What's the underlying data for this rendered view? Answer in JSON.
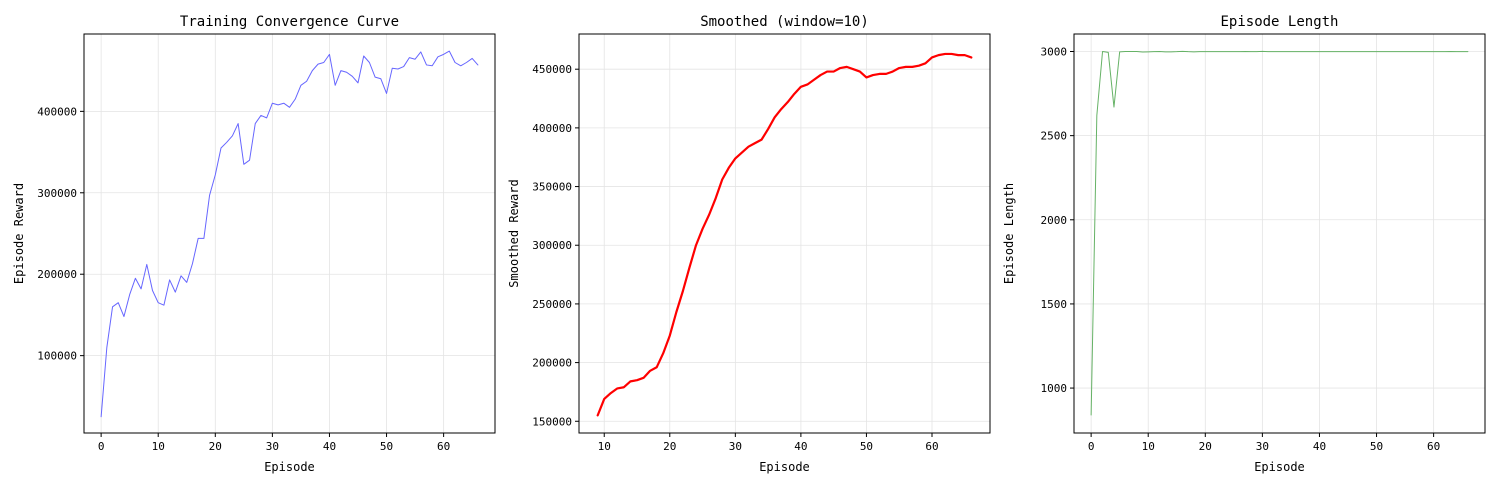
{
  "chart_data": [
    {
      "type": "line",
      "title": "Training Convergence Curve",
      "xlabel": "Episode",
      "ylabel": "Episode Reward",
      "xlim": [
        -3,
        69
      ],
      "ylim": [
        5000,
        495000
      ],
      "xticks": [
        0,
        10,
        20,
        30,
        40,
        50,
        60
      ],
      "yticks": [
        100000,
        200000,
        300000,
        400000
      ],
      "grid": true,
      "series": [
        {
          "color": "#6666ff",
          "line_width": 1,
          "x": [
            0,
            1,
            2,
            3,
            4,
            5,
            6,
            7,
            8,
            9,
            10,
            11,
            12,
            13,
            14,
            15,
            16,
            17,
            18,
            19,
            20,
            21,
            22,
            23,
            24,
            25,
            26,
            27,
            28,
            29,
            30,
            31,
            32,
            33,
            34,
            35,
            36,
            37,
            38,
            39,
            40,
            41,
            42,
            43,
            44,
            45,
            46,
            47,
            48,
            49,
            50,
            51,
            52,
            53,
            54,
            55,
            56,
            57,
            58,
            59,
            60,
            61,
            62,
            63,
            64,
            65,
            66
          ],
          "values": [
            25000,
            110000,
            160000,
            165000,
            148000,
            175000,
            195000,
            182000,
            212000,
            180000,
            165000,
            162000,
            193000,
            178000,
            198000,
            190000,
            213000,
            244000,
            244000,
            297000,
            322000,
            355000,
            362000,
            370000,
            385000,
            335000,
            340000,
            385000,
            395000,
            392000,
            410000,
            408000,
            410000,
            405000,
            415000,
            432000,
            437000,
            450000,
            458000,
            460000,
            470000,
            432000,
            450000,
            448000,
            443000,
            435000,
            468000,
            460000,
            442000,
            440000,
            422000,
            453000,
            452000,
            455000,
            466000,
            464000,
            473000,
            457000,
            456000,
            467000,
            470000,
            474000,
            460000,
            456000,
            460000,
            465000,
            457000
          ]
        }
      ]
    },
    {
      "type": "line",
      "title": "Smoothed (window=10)",
      "xlabel": "Episode",
      "ylabel": "Smoothed Reward",
      "xlim": [
        6.15,
        68.85
      ],
      "ylim": [
        140000,
        480000
      ],
      "xticks": [
        10,
        20,
        30,
        40,
        50,
        60
      ],
      "yticks": [
        150000,
        200000,
        250000,
        300000,
        350000,
        400000,
        450000
      ],
      "grid": true,
      "series": [
        {
          "color": "#ff0000",
          "line_width": 2.2,
          "x": [
            9,
            10,
            11,
            12,
            13,
            14,
            15,
            16,
            17,
            18,
            19,
            20,
            21,
            22,
            23,
            24,
            25,
            26,
            27,
            28,
            29,
            30,
            31,
            32,
            33,
            34,
            35,
            36,
            37,
            38,
            39,
            40,
            41,
            42,
            43,
            44,
            45,
            46,
            47,
            48,
            49,
            50,
            51,
            52,
            53,
            54,
            55,
            56,
            57,
            58,
            59,
            60,
            61,
            62,
            63,
            64,
            65,
            66
          ],
          "values": [
            155000,
            169000,
            174000,
            178000,
            179000,
            184000,
            185000,
            187000,
            193000,
            196000,
            208000,
            223000,
            243000,
            261000,
            281000,
            300000,
            314000,
            326000,
            340000,
            356000,
            366000,
            374000,
            379000,
            384000,
            387000,
            390000,
            399000,
            409000,
            416000,
            422000,
            429000,
            435000,
            437000,
            441000,
            445000,
            448000,
            448000,
            451000,
            452000,
            450000,
            448000,
            443000,
            445000,
            446000,
            446000,
            448000,
            451000,
            452000,
            452000,
            453000,
            455000,
            460000,
            462000,
            463000,
            463000,
            462000,
            462000,
            460000
          ]
        }
      ]
    },
    {
      "type": "line",
      "title": "Episode Length",
      "xlabel": "Episode",
      "ylabel": "Episode Length",
      "xlim": [
        -3,
        69
      ],
      "ylim": [
        733,
        3104
      ],
      "xticks": [
        0,
        10,
        20,
        30,
        40,
        50,
        60
      ],
      "yticks": [
        1000,
        1500,
        2000,
        2500,
        3000
      ],
      "grid": true,
      "series": [
        {
          "color": "#66b266",
          "line_width": 1,
          "x": [
            0,
            1,
            2,
            3,
            4,
            5,
            6,
            7,
            8,
            9,
            10,
            11,
            12,
            13,
            14,
            15,
            16,
            17,
            18,
            19,
            20,
            21,
            22,
            23,
            24,
            25,
            26,
            27,
            28,
            29,
            30,
            31,
            32,
            33,
            34,
            35,
            36,
            37,
            38,
            39,
            40,
            41,
            42,
            43,
            44,
            45,
            46,
            47,
            48,
            49,
            50,
            51,
            52,
            53,
            54,
            55,
            56,
            57,
            58,
            59,
            60,
            61,
            62,
            63,
            64,
            65,
            66
          ],
          "values": [
            840,
            2620,
            3000,
            2995,
            2670,
            2998,
            3000,
            3000,
            3000,
            2997,
            2998,
            2999,
            3000,
            2998,
            2998,
            2999,
            3001,
            2999,
            2998,
            2999,
            2999,
            2999,
            2999,
            2999,
            2999,
            2999,
            2999,
            3000,
            2999,
            2999,
            3001,
            2999,
            2999,
            2999,
            2999,
            2999,
            2999,
            2999,
            2999,
            2999,
            2999,
            2999,
            2999,
            2999,
            2999,
            2999,
            2999,
            2999,
            2999,
            2999,
            2999,
            2999,
            2999,
            2999,
            2999,
            2999,
            2999,
            2999,
            2999,
            2999,
            2999,
            2999,
            2999,
            3000,
            2999,
            2999,
            2999
          ]
        }
      ]
    }
  ]
}
